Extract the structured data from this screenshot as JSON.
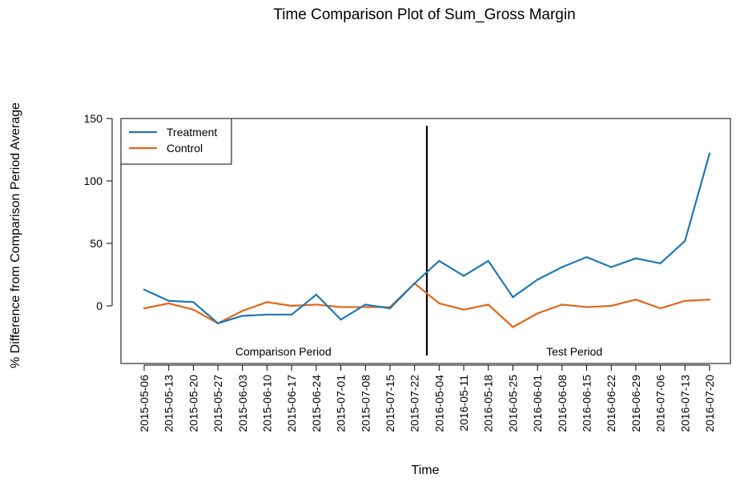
{
  "chart_data": {
    "type": "line",
    "title": "Time Comparison Plot of Sum_Gross Margin",
    "xlabel": "Time",
    "ylabel": "% Difference from Comparison Period Average",
    "x": [
      "2015-05-06",
      "2015-05-13",
      "2015-05-20",
      "2015-05-27",
      "2015-06-03",
      "2015-06-10",
      "2015-06-17",
      "2015-06-24",
      "2015-07-01",
      "2015-07-08",
      "2015-07-15",
      "2015-07-22",
      "2016-05-04",
      "2016-05-11",
      "2016-05-18",
      "2016-05-25",
      "2016-06-01",
      "2016-06-08",
      "2016-06-15",
      "2016-06-22",
      "2016-06-29",
      "2016-07-06",
      "2016-07-13",
      "2016-07-20"
    ],
    "yticks": [
      "0",
      "50",
      "100",
      "150"
    ],
    "ylim": [
      -45,
      150
    ],
    "series": [
      {
        "name": "Treatment",
        "color": "#1f77b4",
        "values": [
          13,
          4,
          3,
          -14,
          -8,
          -7,
          -7,
          9,
          -11,
          1,
          -2,
          18,
          36,
          24,
          36,
          7,
          21,
          31,
          39,
          31,
          38,
          34,
          52,
          122
        ]
      },
      {
        "name": "Control",
        "color": "#e1661a",
        "values": [
          -2,
          2,
          -3,
          -14,
          -4,
          3,
          0,
          1,
          -1,
          -1,
          -1,
          18,
          2,
          -3,
          1,
          -17,
          -6,
          1,
          -1,
          0,
          5,
          -2,
          4,
          5
        ]
      }
    ],
    "period_labels": [
      "Comparison Period",
      "Test Period"
    ],
    "divider_after_index": 11,
    "legend_position": "top-left",
    "grid": false
  }
}
